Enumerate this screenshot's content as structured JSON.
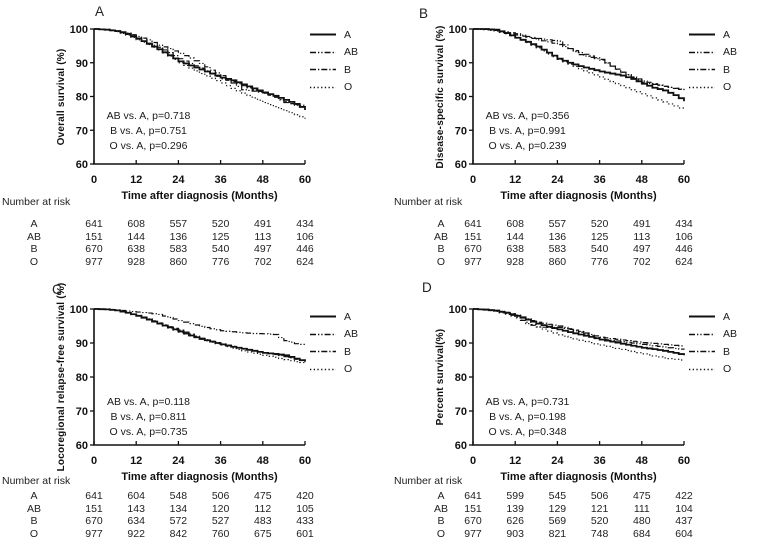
{
  "figure": {
    "background": "#ffffff",
    "ink": "#111111"
  },
  "chart_data": [
    {
      "panel_label": "A",
      "type": "line",
      "subtype": "kaplan-meier-step",
      "ylabel": "Overall survival (%)",
      "xlabel": "Time after diagnosis (Months)",
      "ylim": [
        60,
        100
      ],
      "xlim": [
        0,
        60
      ],
      "yticks": [
        100,
        90,
        80,
        70,
        60
      ],
      "xticks": [
        0,
        12,
        24,
        36,
        48,
        60
      ],
      "grid": false,
      "legend_position": "right",
      "x": [
        0,
        3,
        6,
        9,
        12,
        15,
        18,
        21,
        24,
        27,
        30,
        33,
        36,
        39,
        42,
        45,
        48,
        51,
        54,
        57,
        60
      ],
      "series": [
        {
          "name": "A",
          "style": "solid",
          "values": [
            100,
            99.8,
            99.4,
            98.6,
            97.2,
            95.6,
            94.0,
            92.2,
            90.4,
            89.2,
            88.0,
            86.8,
            85.6,
            84.8,
            83.6,
            82.4,
            81.2,
            80.2,
            79.0,
            77.8,
            76.0
          ]
        },
        {
          "name": "AB",
          "style": "dash-dot-dot",
          "values": [
            100,
            99.9,
            99.5,
            98.8,
            97.8,
            96.8,
            95.2,
            94.2,
            92.8,
            91.4,
            89.8,
            87.8,
            86.2,
            84.0,
            82.0,
            81.6,
            81.0,
            79.8,
            78.2,
            77.6,
            77.2
          ]
        },
        {
          "name": "B",
          "style": "dash-dot",
          "values": [
            100,
            99.8,
            99.3,
            98.4,
            97.0,
            95.8,
            94.6,
            93.0,
            91.2,
            89.8,
            88.4,
            86.8,
            85.2,
            84.4,
            83.2,
            82.0,
            81.0,
            79.8,
            78.4,
            77.4,
            76.4
          ]
        },
        {
          "name": "O",
          "style": "dotted",
          "values": [
            100,
            99.8,
            99.2,
            98.2,
            96.8,
            95.4,
            93.8,
            92.0,
            90.0,
            88.4,
            86.8,
            85.4,
            84.0,
            82.4,
            81.0,
            79.6,
            78.2,
            77.0,
            75.8,
            74.6,
            73.4
          ]
        }
      ],
      "annotations": [
        "AB vs. A, p=0.718",
        "B vs. A, p=0.751",
        "O vs. A, p=0.296"
      ],
      "risk_table": {
        "title": "Number at risk",
        "time_points": [
          0,
          12,
          24,
          36,
          48,
          60
        ],
        "rows": [
          {
            "label": "A",
            "values": [
              641,
              608,
              557,
              520,
              491,
              434
            ]
          },
          {
            "label": "AB",
            "values": [
              151,
              144,
              136,
              125,
              113,
              106
            ]
          },
          {
            "label": "B",
            "values": [
              670,
              638,
              583,
              540,
              497,
              446
            ]
          },
          {
            "label": "O",
            "values": [
              977,
              928,
              860,
              776,
              702,
              624
            ]
          }
        ]
      }
    },
    {
      "panel_label": "B",
      "type": "line",
      "subtype": "kaplan-meier-step",
      "ylabel": "Disease-specific survival (%)",
      "xlabel": "Time after diagnosis (Months)",
      "ylim": [
        60,
        100
      ],
      "xlim": [
        0,
        60
      ],
      "yticks": [
        100,
        90,
        80,
        70,
        60
      ],
      "xticks": [
        0,
        12,
        24,
        36,
        48,
        60
      ],
      "grid": false,
      "legend_position": "right",
      "x": [
        0,
        3,
        6,
        9,
        12,
        15,
        18,
        21,
        24,
        27,
        30,
        33,
        36,
        39,
        42,
        45,
        48,
        51,
        54,
        57,
        60
      ],
      "series": [
        {
          "name": "A",
          "style": "solid",
          "values": [
            100,
            100,
            99.8,
            98.8,
            97.4,
            96.2,
            94.8,
            93.0,
            91.2,
            90.0,
            89.0,
            88.2,
            87.4,
            86.8,
            86.2,
            85.2,
            83.8,
            82.6,
            81.8,
            80.4,
            78.6
          ]
        },
        {
          "name": "AB",
          "style": "dash-dot-dot",
          "values": [
            100,
            100,
            99.6,
            99.2,
            98.6,
            97.8,
            97.2,
            96.8,
            96.4,
            94.2,
            92.4,
            91.6,
            90.8,
            89.0,
            87.2,
            85.6,
            84.2,
            83.6,
            83.0,
            82.4,
            81.8
          ]
        },
        {
          "name": "B",
          "style": "dash-dot",
          "values": [
            100,
            99.9,
            99.6,
            98.9,
            98.2,
            97.6,
            96.8,
            96.2,
            95.4,
            94.2,
            93.0,
            92.0,
            91.0,
            89.0,
            87.2,
            85.8,
            84.6,
            83.8,
            83.0,
            82.4,
            82.0
          ]
        },
        {
          "name": "O",
          "style": "dotted",
          "values": [
            100,
            99.8,
            99.4,
            98.6,
            97.4,
            96.0,
            94.4,
            92.6,
            91.0,
            89.6,
            88.2,
            87.0,
            85.8,
            84.4,
            83.2,
            82.0,
            80.8,
            79.6,
            78.4,
            77.2,
            76.0
          ]
        }
      ],
      "annotations": [
        "AB vs. A, p=0.356",
        "B vs. A, p=0.991",
        "O vs. A, p=0.239"
      ],
      "risk_table": {
        "title": "Number at risk",
        "time_points": [
          0,
          12,
          24,
          36,
          48,
          60
        ],
        "rows": [
          {
            "label": "A",
            "values": [
              641,
              608,
              557,
              520,
              491,
              434
            ]
          },
          {
            "label": "AB",
            "values": [
              151,
              144,
              136,
              125,
              113,
              106
            ]
          },
          {
            "label": "B",
            "values": [
              670,
              638,
              583,
              540,
              497,
              446
            ]
          },
          {
            "label": "O",
            "values": [
              977,
              928,
              860,
              776,
              702,
              624
            ]
          }
        ]
      }
    },
    {
      "panel_label": "C",
      "type": "line",
      "subtype": "kaplan-meier-step",
      "ylabel": "Locoregional relapse-free survival (%)",
      "xlabel": "Time after diagnosis (Months)",
      "ylim": [
        60,
        100
      ],
      "xlim": [
        0,
        60
      ],
      "yticks": [
        100,
        90,
        80,
        70,
        60
      ],
      "xticks": [
        0,
        12,
        24,
        36,
        48,
        60
      ],
      "grid": false,
      "legend_position": "right",
      "x": [
        0,
        3,
        6,
        9,
        12,
        15,
        18,
        21,
        24,
        27,
        30,
        33,
        36,
        39,
        42,
        45,
        48,
        51,
        54,
        57,
        60
      ],
      "series": [
        {
          "name": "A",
          "style": "solid",
          "values": [
            100,
            99.9,
            99.6,
            98.9,
            98.0,
            96.9,
            95.7,
            94.6,
            93.4,
            92.2,
            91.2,
            90.4,
            89.6,
            88.9,
            88.3,
            87.7,
            87.1,
            86.8,
            86.4,
            85.4,
            84.5
          ]
        },
        {
          "name": "AB",
          "style": "dash-dot-dot",
          "values": [
            100,
            100,
            99.7,
            99.4,
            99.1,
            98.8,
            98.4,
            97.5,
            96.6,
            95.7,
            94.9,
            94.2,
            93.6,
            93.3,
            93.0,
            92.8,
            92.7,
            92.5,
            90.7,
            89.8,
            89.4
          ]
        },
        {
          "name": "B",
          "style": "dash-dot",
          "values": [
            100,
            99.9,
            99.6,
            98.9,
            98.1,
            97.1,
            95.9,
            94.8,
            93.8,
            92.6,
            91.4,
            90.5,
            89.7,
            89.0,
            88.3,
            87.7,
            87.1,
            86.6,
            86.0,
            85.2,
            84.6
          ]
        },
        {
          "name": "O",
          "style": "dotted",
          "values": [
            100,
            99.9,
            99.6,
            98.9,
            98.0,
            96.8,
            95.6,
            94.4,
            93.2,
            92.1,
            91.1,
            90.2,
            89.4,
            88.5,
            87.7,
            87.0,
            86.4,
            85.8,
            85.1,
            84.5,
            84.0
          ]
        }
      ],
      "annotations": [
        "AB vs. A, p=0.118",
        "B vs. A, p=0.811",
        "O vs. A, p=0.735"
      ],
      "risk_table": {
        "title": "Number at risk",
        "time_points": [
          0,
          12,
          24,
          36,
          48,
          60
        ],
        "rows": [
          {
            "label": "A",
            "values": [
              641,
              604,
              548,
              506,
              475,
              420
            ]
          },
          {
            "label": "AB",
            "values": [
              151,
              143,
              134,
              120,
              112,
              105
            ]
          },
          {
            "label": "B",
            "values": [
              670,
              634,
              572,
              527,
              483,
              433
            ]
          },
          {
            "label": "O",
            "values": [
              977,
              922,
              842,
              760,
              675,
              601
            ]
          }
        ]
      }
    },
    {
      "panel_label": "D",
      "type": "line",
      "subtype": "kaplan-meier-step",
      "ylabel": "Percent survival(%)",
      "xlabel": "Time after diagnosis (Months)",
      "ylim": [
        60,
        100
      ],
      "xlim": [
        0,
        60
      ],
      "yticks": [
        100,
        90,
        80,
        70,
        60
      ],
      "xticks": [
        0,
        12,
        24,
        36,
        48,
        60
      ],
      "grid": false,
      "legend_position": "right",
      "x": [
        0,
        3,
        6,
        9,
        12,
        15,
        18,
        21,
        24,
        27,
        30,
        33,
        36,
        39,
        42,
        45,
        48,
        51,
        54,
        57,
        60
      ],
      "series": [
        {
          "name": "A",
          "style": "solid",
          "values": [
            100,
            99.8,
            99.5,
            98.9,
            98.0,
            96.9,
            95.7,
            94.8,
            94.0,
            93.2,
            92.5,
            91.8,
            91.0,
            90.4,
            89.8,
            89.2,
            88.6,
            88.2,
            87.7,
            87.1,
            86.4
          ]
        },
        {
          "name": "AB",
          "style": "dash-dot-dot",
          "values": [
            100,
            99.9,
            99.5,
            98.7,
            97.6,
            95.7,
            94.7,
            94.6,
            94.6,
            94.0,
            93.2,
            92.1,
            91.1,
            90.8,
            90.4,
            90.0,
            89.6,
            89.2,
            88.8,
            88.4,
            88.0
          ]
        },
        {
          "name": "B",
          "style": "dash-dot",
          "values": [
            100,
            99.9,
            99.6,
            99.0,
            98.2,
            97.1,
            96.1,
            95.5,
            95.0,
            94.2,
            93.4,
            92.5,
            91.7,
            91.3,
            90.9,
            90.5,
            90.1,
            89.9,
            89.6,
            89.3,
            89.0
          ]
        },
        {
          "name": "O",
          "style": "dotted",
          "values": [
            100,
            99.8,
            99.3,
            98.5,
            97.4,
            96.1,
            94.7,
            93.5,
            92.4,
            91.6,
            90.8,
            90.1,
            89.4,
            88.7,
            88.1,
            87.5,
            86.8,
            86.2,
            85.6,
            85.2,
            84.8
          ]
        }
      ],
      "annotations": [
        "AB vs. A, p=0.731",
        "B vs. A, p=0.198",
        "O vs. A, p=0.348"
      ],
      "risk_table": {
        "title": "Number at risk",
        "time_points": [
          0,
          12,
          24,
          36,
          48,
          60
        ],
        "rows": [
          {
            "label": "A",
            "values": [
              641,
              599,
              545,
              506,
              475,
              422
            ]
          },
          {
            "label": "AB",
            "values": [
              151,
              139,
              129,
              121,
              111,
              104
            ]
          },
          {
            "label": "B",
            "values": [
              670,
              626,
              569,
              520,
              480,
              437
            ]
          },
          {
            "label": "O",
            "values": [
              977,
              903,
              821,
              748,
              684,
              604
            ]
          }
        ]
      }
    }
  ]
}
